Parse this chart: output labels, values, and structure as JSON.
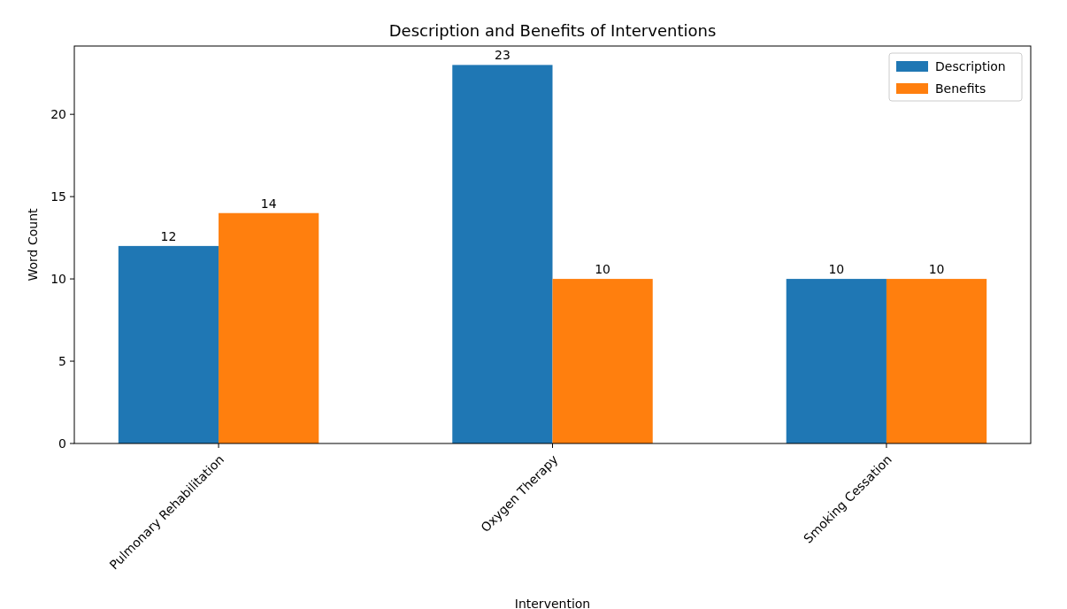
{
  "chart_data": {
    "type": "bar",
    "title": "Description and Benefits of Interventions",
    "xlabel": "Intervention",
    "ylabel": "Word Count",
    "categories": [
      "Pulmonary Rehabilitation",
      "Oxygen Therapy",
      "Smoking Cessation"
    ],
    "series": [
      {
        "name": "Description",
        "color": "#1f77b4",
        "values": [
          12,
          23,
          10
        ]
      },
      {
        "name": "Benefits",
        "color": "#ff7f0e",
        "values": [
          14,
          10,
          10
        ]
      }
    ],
    "ylim": [
      0,
      24.15
    ],
    "yticks": [
      0,
      5,
      10,
      15,
      20
    ],
    "data_labels": true,
    "legend": "top right",
    "grid": false
  }
}
